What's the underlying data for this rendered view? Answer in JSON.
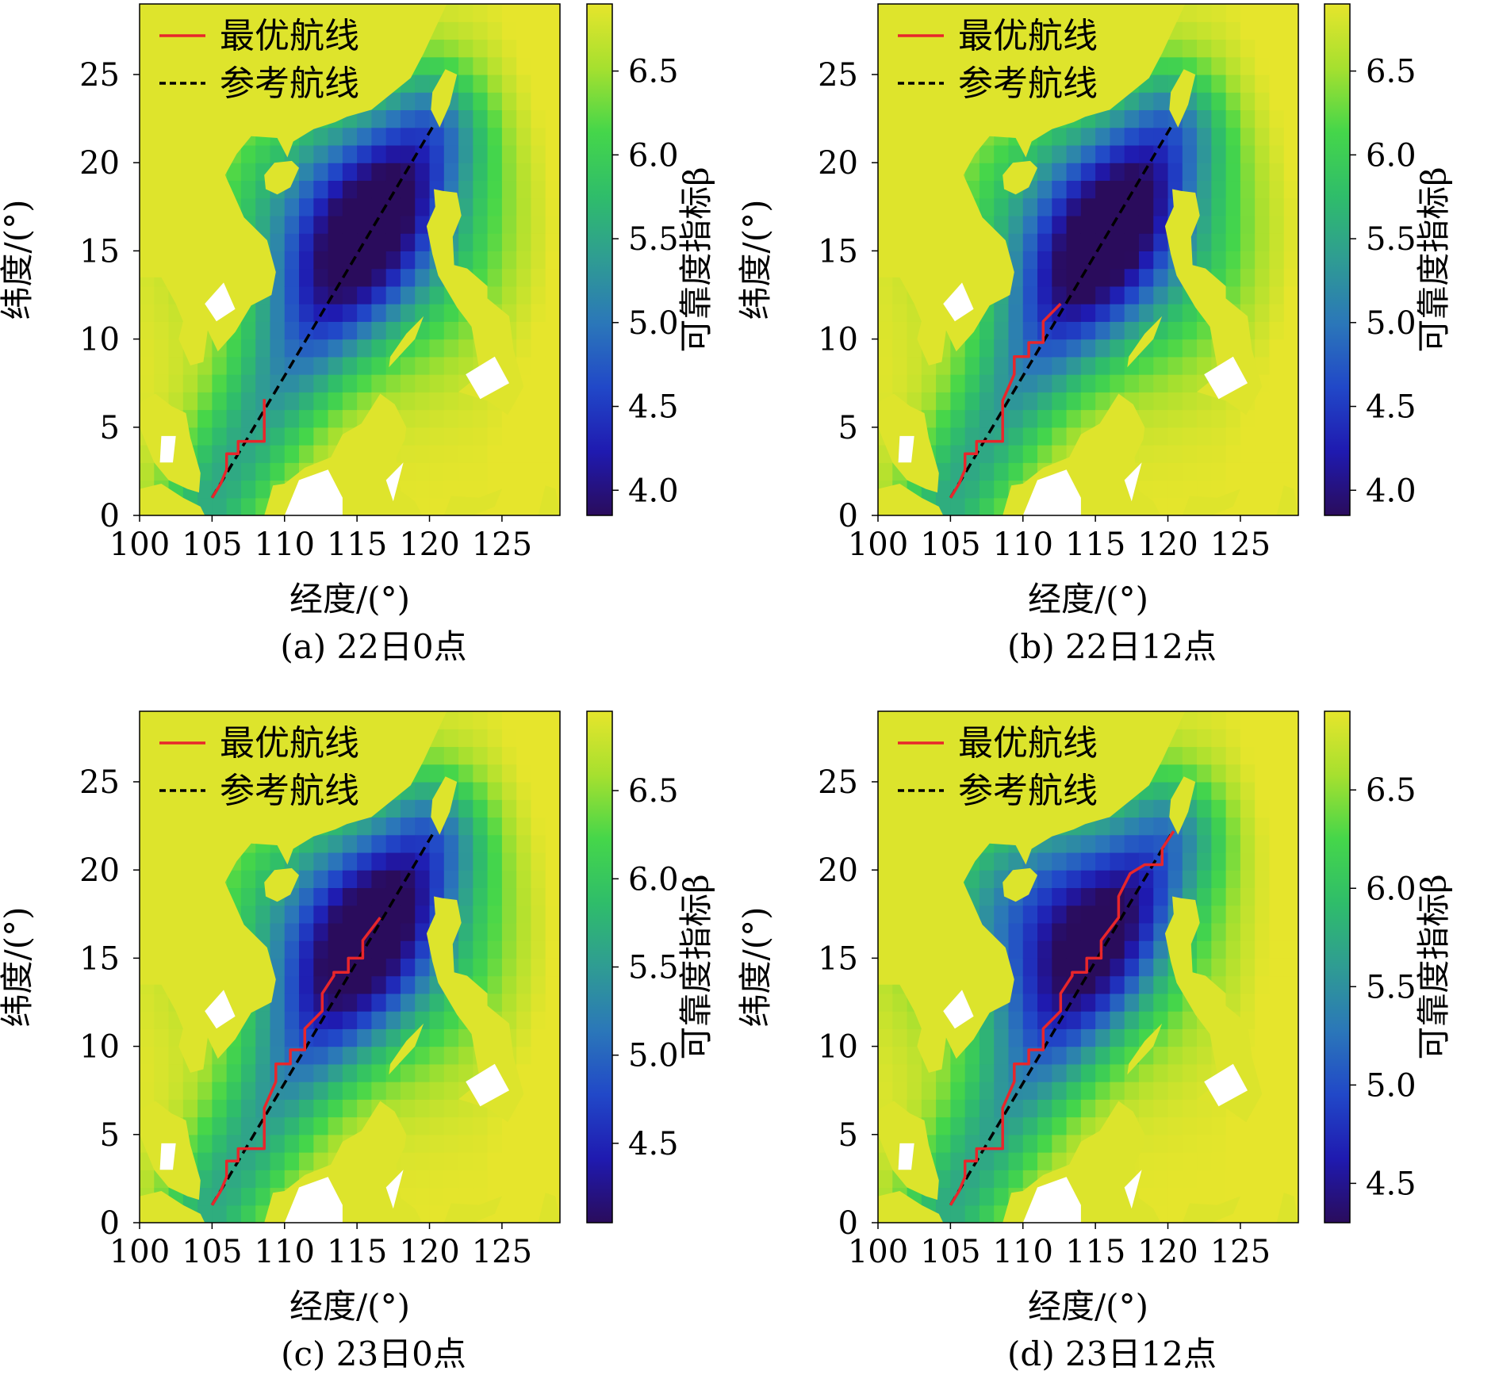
{
  "colors": {
    "optimal_route": "#e8262b",
    "reference_route": "#000000",
    "land": "#ffffff",
    "colormap": [
      "#2a0c5c",
      "#1f1ab0",
      "#2148c8",
      "#2b77b9",
      "#2f9c93",
      "#2fbd6a",
      "#45d64a",
      "#a6e02f",
      "#e6e52c"
    ]
  },
  "chart_data": [
    {
      "type": "heatmap",
      "caption": "(a) 22日0点",
      "xlabel": "经度/(°)",
      "ylabel": "纬度/(°)",
      "x_ticks": [
        "100",
        "105",
        "110",
        "115",
        "120",
        "125"
      ],
      "y_ticks": [
        "0",
        "5",
        "10",
        "15",
        "20",
        "25"
      ],
      "xlim": [
        100,
        129
      ],
      "ylim": [
        0,
        29
      ],
      "colorbar": {
        "label": "可靠度指标β",
        "ticks": [
          "4.0",
          "4.5",
          "5.0",
          "5.5",
          "6.0",
          "6.5"
        ],
        "range": [
          3.85,
          6.9
        ]
      },
      "legend": [
        {
          "label": "最优航线",
          "series": "optimal"
        },
        {
          "label": "参考航线",
          "series": "reference"
        }
      ],
      "reference_route": {
        "x": [
          105,
          120.2
        ],
        "y": [
          1,
          22
        ]
      },
      "optimal_route": {
        "x": [
          105,
          105.6,
          106,
          106,
          106.8,
          106.8,
          107.6,
          107.6,
          108.6,
          108.6
        ],
        "y": [
          1,
          1.8,
          2.6,
          3.5,
          3.5,
          4.2,
          4.2,
          4.2,
          4.2,
          6.6
        ]
      },
      "field_minimum": {
        "x": 115,
        "y": 16.5
      },
      "land_level": 6.85
    },
    {
      "type": "heatmap",
      "caption": "(b) 22日12点",
      "xlabel": "经度/(°)",
      "ylabel": "纬度/(°)",
      "x_ticks": [
        "100",
        "105",
        "110",
        "115",
        "120",
        "125"
      ],
      "y_ticks": [
        "0",
        "5",
        "10",
        "15",
        "20",
        "25"
      ],
      "xlim": [
        100,
        129
      ],
      "ylim": [
        0,
        29
      ],
      "colorbar": {
        "label": "可靠度指标β",
        "ticks": [
          "4.0",
          "4.5",
          "5.0",
          "5.5",
          "6.0",
          "6.5"
        ],
        "range": [
          3.85,
          6.9
        ]
      },
      "legend": [
        {
          "label": "最优航线",
          "series": "optimal"
        },
        {
          "label": "参考航线",
          "series": "reference"
        }
      ],
      "reference_route": {
        "x": [
          105,
          120.2
        ],
        "y": [
          1,
          22
        ]
      },
      "optimal_route": {
        "x": [
          105,
          105.6,
          106,
          106,
          106.8,
          106.8,
          107.6,
          107.6,
          108.6,
          108.6,
          108.6,
          109.4,
          109.4,
          110.4,
          110.4,
          111.4,
          111.4,
          112.6
        ],
        "y": [
          1,
          1.8,
          2.6,
          3.5,
          3.5,
          4.2,
          4.2,
          4.2,
          4.2,
          5.5,
          6.5,
          8,
          9,
          9,
          9.8,
          9.8,
          11,
          12
        ]
      },
      "field_minimum": {
        "x": 115.5,
        "y": 16
      },
      "land_level": 6.85
    },
    {
      "type": "heatmap",
      "caption": "(c) 23日0点",
      "xlabel": "经度/(°)",
      "ylabel": "纬度/(°)",
      "x_ticks": [
        "100",
        "105",
        "110",
        "115",
        "120",
        "125"
      ],
      "y_ticks": [
        "0",
        "5",
        "10",
        "15",
        "20",
        "25"
      ],
      "xlim": [
        100,
        129
      ],
      "ylim": [
        0,
        29
      ],
      "colorbar": {
        "label": "可靠度指标β",
        "ticks": [
          "4.5",
          "5.0",
          "5.5",
          "6.0",
          "6.5"
        ],
        "range": [
          4.05,
          6.95
        ]
      },
      "legend": [
        {
          "label": "最优航线",
          "series": "optimal"
        },
        {
          "label": "参考航线",
          "series": "reference"
        }
      ],
      "reference_route": {
        "x": [
          105,
          120.2
        ],
        "y": [
          1,
          22
        ]
      },
      "optimal_route": {
        "x": [
          105,
          105.6,
          106,
          106,
          106.8,
          106.8,
          107.6,
          107.6,
          108.6,
          108.6,
          108.6,
          109.4,
          109.4,
          110.4,
          110.4,
          111.4,
          111.4,
          112.6,
          112.6,
          113.4,
          113.4,
          114.4,
          114.4,
          115.4,
          115.4,
          116.6,
          116.6
        ],
        "y": [
          1,
          1.8,
          2.6,
          3.5,
          3.5,
          4.2,
          4.2,
          4.2,
          4.2,
          5.5,
          6.5,
          8,
          9,
          9,
          9.8,
          9.8,
          11,
          12,
          13,
          14,
          14.2,
          14.2,
          15,
          15,
          16,
          17.3,
          17.3
        ]
      },
      "field_minimum": {
        "x": 115,
        "y": 16.5
      },
      "land_level": 6.9
    },
    {
      "type": "heatmap",
      "caption": "(d) 23日12点",
      "xlabel": "经度/(°)",
      "ylabel": "纬度/(°)",
      "x_ticks": [
        "100",
        "105",
        "110",
        "115",
        "120",
        "125"
      ],
      "y_ticks": [
        "0",
        "5",
        "10",
        "15",
        "20",
        "25"
      ],
      "xlim": [
        100,
        129
      ],
      "ylim": [
        0,
        29
      ],
      "colorbar": {
        "label": "可靠度指标β",
        "ticks": [
          "4.5",
          "5.0",
          "5.5",
          "6.0",
          "6.5"
        ],
        "range": [
          4.3,
          6.9
        ]
      },
      "legend": [
        {
          "label": "最优航线",
          "series": "optimal"
        },
        {
          "label": "参考航线",
          "series": "reference"
        }
      ],
      "reference_route": {
        "x": [
          105,
          120.2
        ],
        "y": [
          1,
          22
        ]
      },
      "optimal_route": {
        "x": [
          105,
          105.6,
          106,
          106,
          106.8,
          106.8,
          107.6,
          107.6,
          108.6,
          108.6,
          108.6,
          109.4,
          109.4,
          110.4,
          110.4,
          111.4,
          111.4,
          112.6,
          112.6,
          113.4,
          113.4,
          114.4,
          114.4,
          115.4,
          115.4,
          116.6,
          116.6,
          117.4,
          117.4,
          118.4,
          118.4,
          119.6,
          119.6,
          120.4
        ],
        "y": [
          1,
          1.8,
          2.6,
          3.5,
          3.5,
          4.2,
          4.2,
          4.2,
          4.2,
          5.5,
          6.5,
          8,
          9,
          9,
          9.8,
          9.8,
          11,
          12,
          13,
          14,
          14.2,
          14.2,
          15,
          15,
          16,
          17.3,
          18.5,
          19.8,
          19.8,
          20.3,
          20.3,
          20.3,
          21.2,
          22.2
        ]
      },
      "field_minimum": {
        "x": 112.5,
        "y": 17
      },
      "land_level": 6.85
    }
  ]
}
